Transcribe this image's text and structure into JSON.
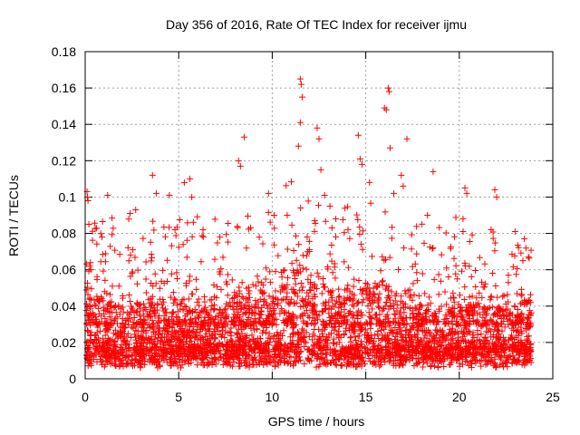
{
  "chart_data": {
    "type": "scatter",
    "title": "Day 356 of 2016, Rate Of TEC Index for receiver ijmu",
    "xlabel": "GPS time / hours",
    "ylabel": "ROTI / TECUs",
    "xlim": [
      0,
      25
    ],
    "ylim": [
      0,
      0.18
    ],
    "x_ticks": [
      0,
      5,
      10,
      15,
      20,
      25
    ],
    "y_ticks": [
      0,
      0.02,
      0.04,
      0.06,
      0.08,
      0.1,
      0.12,
      0.14,
      0.16,
      0.18
    ],
    "x_tick_labels": [
      "0",
      "5",
      "10",
      "15",
      "20",
      "25"
    ],
    "y_tick_labels": [
      "0",
      "0.02",
      "0.04",
      "0.06",
      "0.08",
      "0.1",
      "0.12",
      "0.14",
      "0.16",
      "0.18"
    ],
    "grid": true,
    "marker": "+",
    "marker_color": "#ff0000",
    "series": [
      {
        "name": "ROTI",
        "points": [
          [
            0.1,
            0.103
          ],
          [
            0.12,
            0.1
          ],
          [
            0.15,
            0.098
          ],
          [
            0.2,
            0.085
          ],
          [
            0.25,
            0.062
          ],
          [
            0.3,
            0.06
          ],
          [
            1.2,
            0.101
          ],
          [
            0.9,
            0.078
          ],
          [
            2.4,
            0.091
          ],
          [
            2.7,
            0.093
          ],
          [
            3.6,
            0.112
          ],
          [
            3.8,
            0.102
          ],
          [
            4.5,
            0.101
          ],
          [
            4.8,
            0.082
          ],
          [
            5.3,
            0.108
          ],
          [
            5.6,
            0.11
          ],
          [
            5.7,
            0.1
          ],
          [
            6.3,
            0.082
          ],
          [
            7.2,
            0.078
          ],
          [
            8.2,
            0.12
          ],
          [
            8.3,
            0.117
          ],
          [
            8.5,
            0.133
          ],
          [
            9.8,
            0.102
          ],
          [
            10.1,
            0.09
          ],
          [
            10.8,
            0.09
          ],
          [
            11.5,
            0.165
          ],
          [
            11.55,
            0.162
          ],
          [
            11.6,
            0.155
          ],
          [
            11.5,
            0.141
          ],
          [
            11.4,
            0.128
          ],
          [
            12.4,
            0.138
          ],
          [
            12.5,
            0.132
          ],
          [
            12.6,
            0.115
          ],
          [
            12.8,
            0.101
          ],
          [
            13.4,
            0.088
          ],
          [
            14.6,
            0.134
          ],
          [
            14.7,
            0.121
          ],
          [
            14.8,
            0.118
          ],
          [
            15.2,
            0.108
          ],
          [
            16.0,
            0.149
          ],
          [
            16.1,
            0.148
          ],
          [
            16.2,
            0.16
          ],
          [
            16.25,
            0.158
          ],
          [
            16.3,
            0.127
          ],
          [
            16.5,
            0.102
          ],
          [
            16.9,
            0.112
          ],
          [
            17.2,
            0.132
          ],
          [
            17.0,
            0.106
          ],
          [
            18.6,
            0.114
          ],
          [
            18.3,
            0.09
          ],
          [
            20.3,
            0.105
          ],
          [
            20.4,
            0.102
          ],
          [
            20.2,
            0.088
          ],
          [
            21.9,
            0.104
          ],
          [
            22.0,
            0.1
          ],
          [
            21.7,
            0.082
          ],
          [
            23.4,
            0.065
          ],
          [
            23.7,
            0.067
          ]
        ]
      }
    ]
  }
}
